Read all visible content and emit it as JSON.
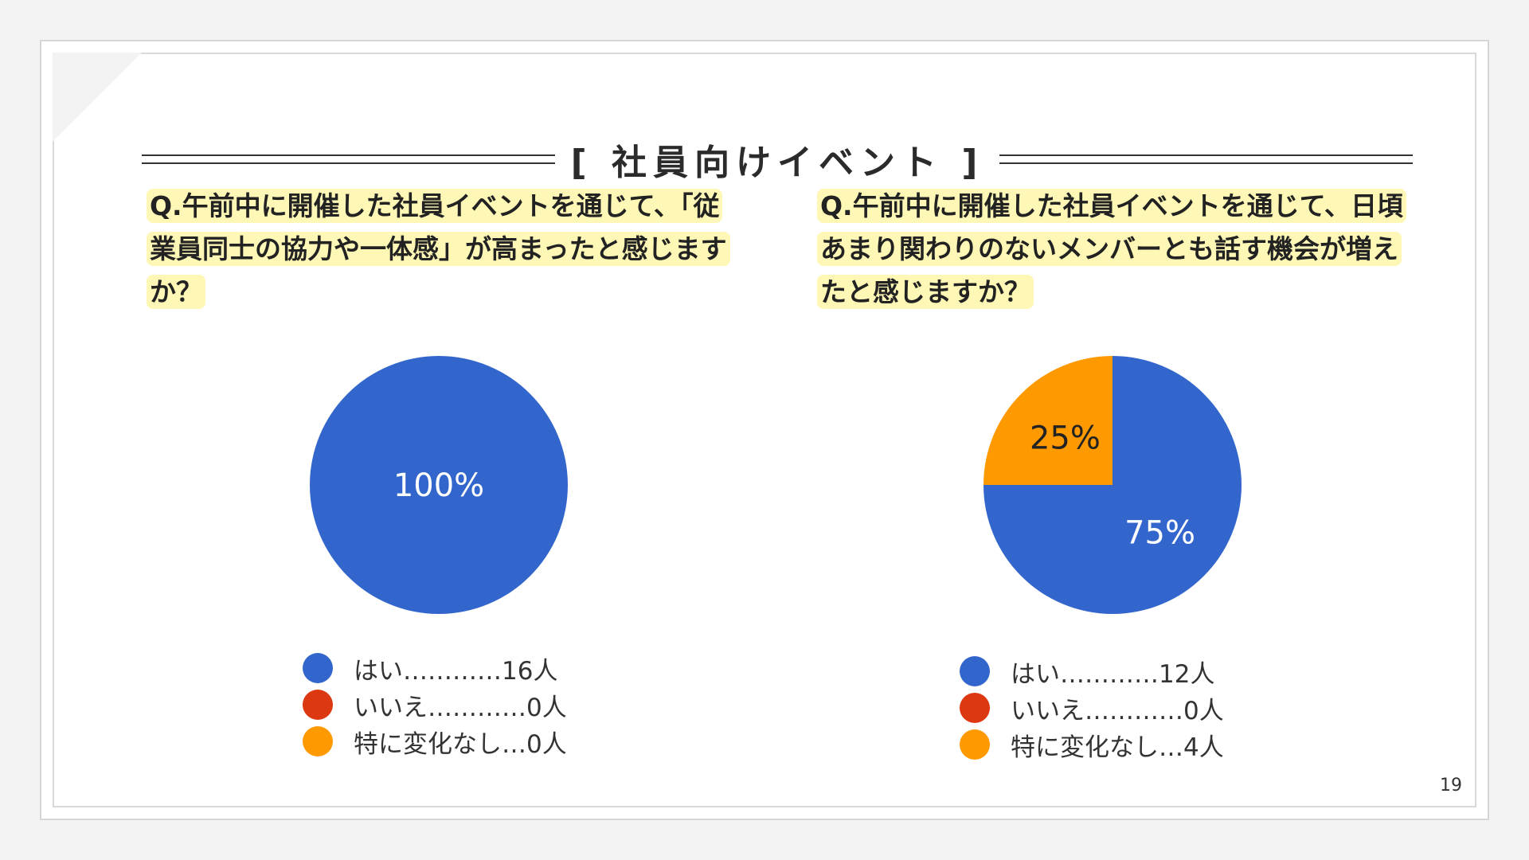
{
  "page_title": "[ 社員向けイベント ]",
  "page_number": "19",
  "colors": {
    "blue": "#3366cc",
    "red": "#dc3912",
    "orange": "#ff9900",
    "highlight": "#fef7b6"
  },
  "chart_data": [
    {
      "type": "pie",
      "title": "Q.午前中に開催した社員イベントを通じて、「従業員同士の協力や一体感」が高まったと感じますか？",
      "categories": [
        "はい",
        "いいえ",
        "特に変化なし"
      ],
      "values": [
        16,
        0,
        0
      ],
      "colors": [
        "#3366cc",
        "#dc3912",
        "#ff9900"
      ],
      "slice_labels": [
        "100%",
        "",
        ""
      ],
      "legend": [
        "はい…………16人",
        "いいえ…………0人",
        "特に変化なし…0人"
      ],
      "legend_position": "bottom"
    },
    {
      "type": "pie",
      "title": "Q.午前中に開催した社員イベントを通じて、日頃あまり関わりのないメンバーとも話す機会が増えたと感じますか？",
      "categories": [
        "はい",
        "いいえ",
        "特に変化なし"
      ],
      "values": [
        12,
        0,
        4
      ],
      "colors": [
        "#3366cc",
        "#dc3912",
        "#ff9900"
      ],
      "slice_labels": [
        "75%",
        "",
        "25%"
      ],
      "legend": [
        "はい…………12人",
        "いいえ…………0人",
        "特に変化なし…4人"
      ],
      "legend_position": "bottom"
    }
  ]
}
